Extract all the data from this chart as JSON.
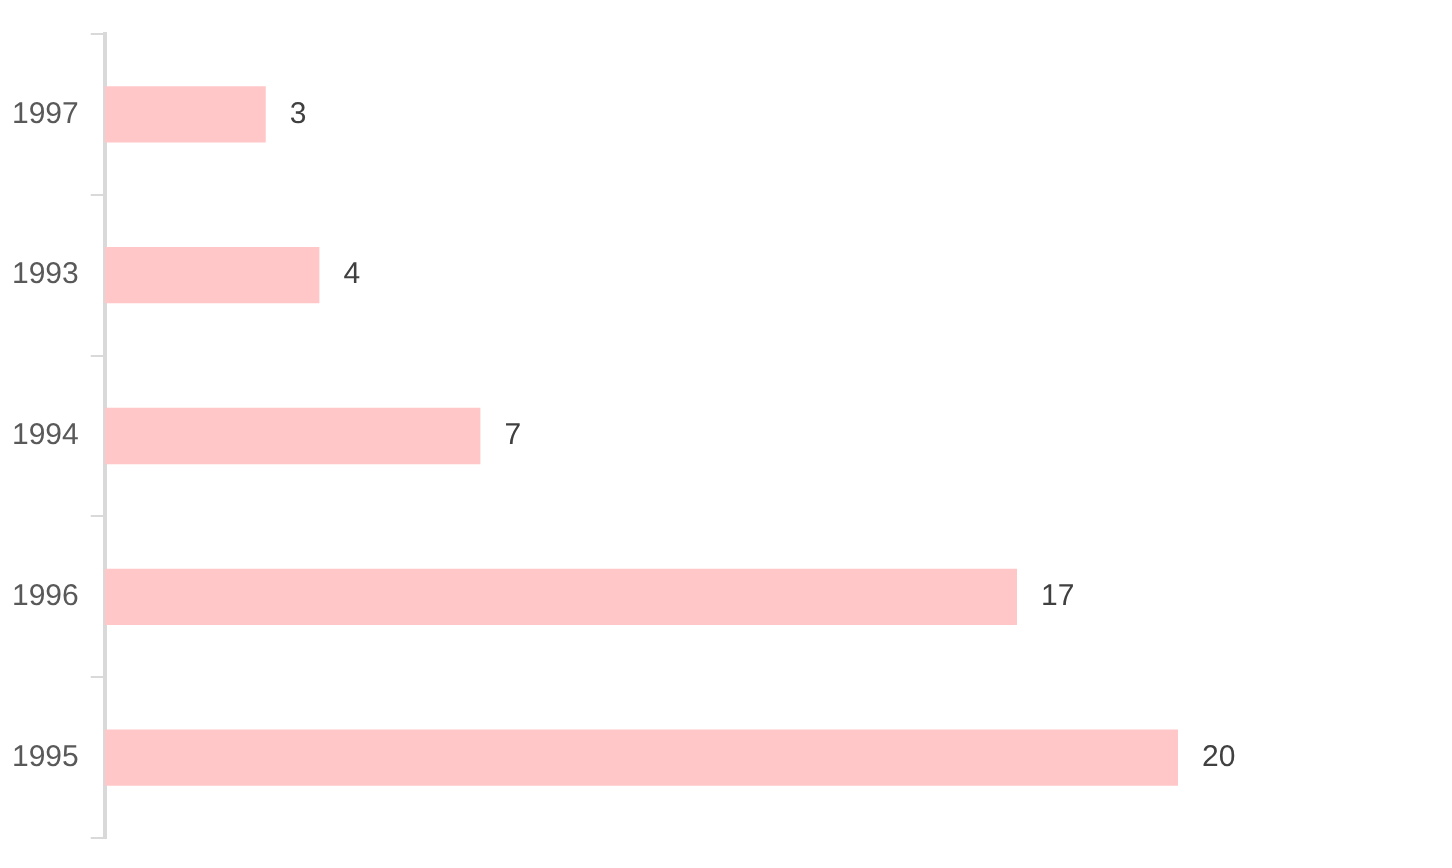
{
  "chart_data": {
    "type": "bar",
    "orientation": "horizontal",
    "categories": [
      "1997",
      "1993",
      "1994",
      "1996",
      "1995"
    ],
    "values": [
      3,
      4,
      7,
      17,
      20
    ],
    "color": "#ffc7c7",
    "data_labels": true
  }
}
